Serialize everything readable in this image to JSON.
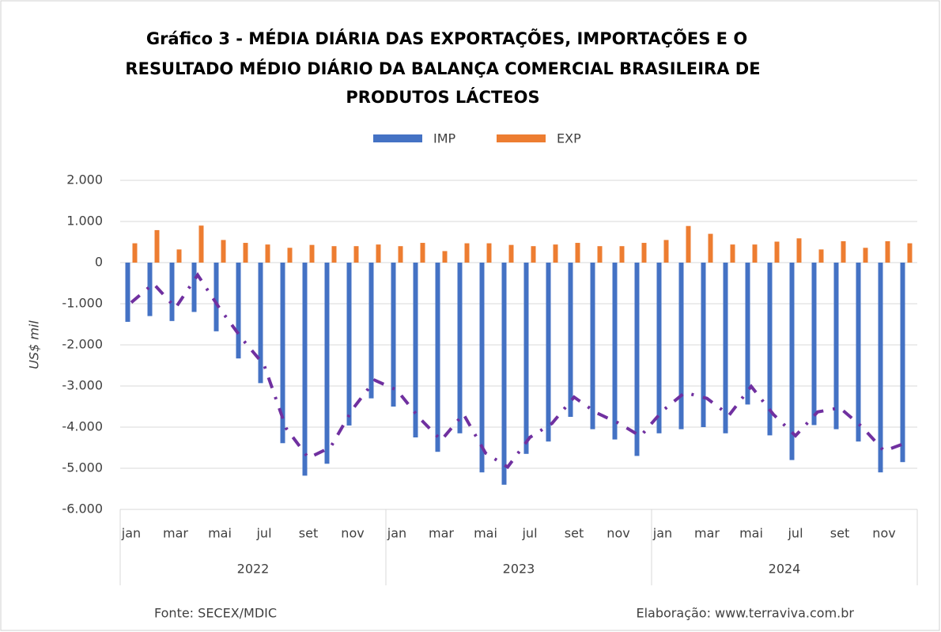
{
  "chart_data": {
    "type": "bar",
    "title": [
      "Gráfico 3 - MÉDIA DIÁRIA DAS EXPORTAÇÕES, IMPORTAÇÕES E O",
      "RESULTADO MÉDIO DIÁRIO DA BALANÇA COMERCIAL BRASILEIRA DE",
      "PRODUTOS LÁCTEOS"
    ],
    "y_label": "US$ mil",
    "categories": [
      "jan",
      null,
      "mar",
      null,
      "mai",
      null,
      "jul",
      null,
      "set",
      null,
      "nov",
      null,
      "jan",
      null,
      "mar",
      null,
      "mai",
      null,
      "jul",
      null,
      "set",
      null,
      "nov",
      null,
      "jan",
      null,
      "mar",
      null,
      "mai",
      null,
      "jul",
      null,
      "set",
      null,
      "nov",
      null
    ],
    "year_groups": [
      "2022",
      "2023",
      "2024"
    ],
    "series": [
      {
        "name": "IMP",
        "color": "#4472c4",
        "values": [
          -1440,
          -1300,
          -1420,
          -1200,
          -1670,
          -2330,
          -2930,
          -4390,
          -5180,
          -4890,
          -3960,
          -3300,
          -3500,
          -4250,
          -4600,
          -4150,
          -5100,
          -5400,
          -4650,
          -4350,
          -3750,
          -4050,
          -4300,
          -4700,
          -4150,
          -4050,
          -4000,
          -4150,
          -3450,
          -4200,
          -4800,
          -3950,
          -4050,
          -4350,
          -5100,
          -4850
        ]
      },
      {
        "name": "EXP",
        "color": "#ed7d31",
        "values": [
          470,
          790,
          320,
          900,
          550,
          480,
          440,
          360,
          430,
          400,
          400,
          440,
          400,
          480,
          280,
          470,
          470,
          430,
          400,
          440,
          480,
          400,
          400,
          480,
          550,
          890,
          700,
          440,
          440,
          510,
          590,
          320,
          520,
          360,
          520,
          470
        ]
      },
      {
        "type": "line",
        "color": "#7030a0",
        "values": [
          -970,
          -510,
          -1100,
          -300,
          -1120,
          -1850,
          -2490,
          -4030,
          -4750,
          -4490,
          -3560,
          -2860,
          -3100,
          -3770,
          -4320,
          -3680,
          -4630,
          -4970,
          -4250,
          -3910,
          -3270,
          -3650,
          -3900,
          -4220,
          -3600,
          -3160,
          -3300,
          -3710,
          -3010,
          -3690,
          -4210,
          -3630,
          -3530,
          -3990,
          -4580,
          -4380
        ]
      }
    ],
    "ylim": [
      -6000,
      2000
    ],
    "yticks": [
      {
        "value": -6000,
        "label": "-6.000"
      },
      {
        "value": -5000,
        "label": "-5.000"
      },
      {
        "value": -4000,
        "label": "-4.000"
      },
      {
        "value": -3000,
        "label": "-3.000"
      },
      {
        "value": -2000,
        "label": "-2.000"
      },
      {
        "value": -1000,
        "label": "-1.000"
      },
      0,
      {
        "value": 1000,
        "label": "1.000"
      },
      {
        "value": 2000,
        "label": "2.000"
      }
    ],
    "grid": true,
    "legend": "top",
    "source": "Fonte: SECEX/MDIC",
    "credit": "Elaboração: www.terraviva.com.br"
  }
}
